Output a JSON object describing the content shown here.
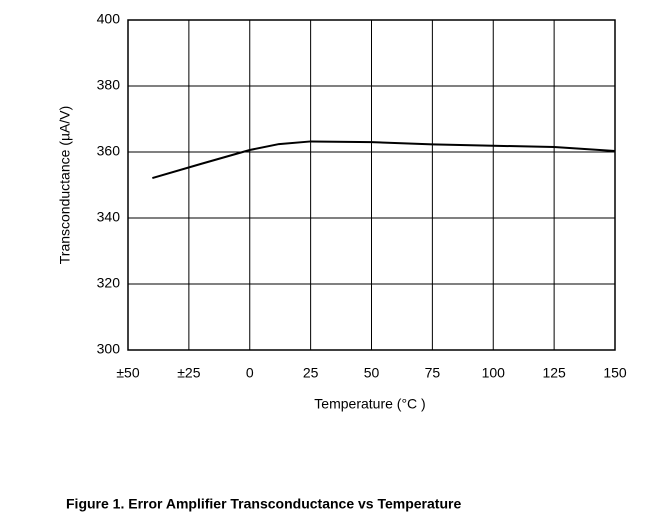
{
  "chart_data": {
    "type": "line",
    "title": "Figure 1. Error Amplifier Transconductance vs Temperature",
    "x_label": "Temperature (°C )",
    "y_label": "Transconductance (µA/V)",
    "x": [
      -40,
      -20,
      0,
      12,
      25,
      50,
      75,
      100,
      125,
      150
    ],
    "series": [
      {
        "name": "Transconductance",
        "color": "#000000",
        "values": [
          352.1,
          356.4,
          360.6,
          362.4,
          363.2,
          363.0,
          362.3,
          361.9,
          361.5,
          360.3
        ]
      }
    ],
    "xlim": [
      -50,
      150
    ],
    "xticks": [
      {
        "value": -50,
        "label": "±50"
      },
      {
        "value": -25,
        "label": "±25"
      },
      0,
      25,
      50,
      75,
      100,
      125,
      150
    ],
    "ylim": [
      300,
      400
    ],
    "yticks": [
      300,
      320,
      340,
      360,
      380,
      400
    ],
    "grid": true
  }
}
